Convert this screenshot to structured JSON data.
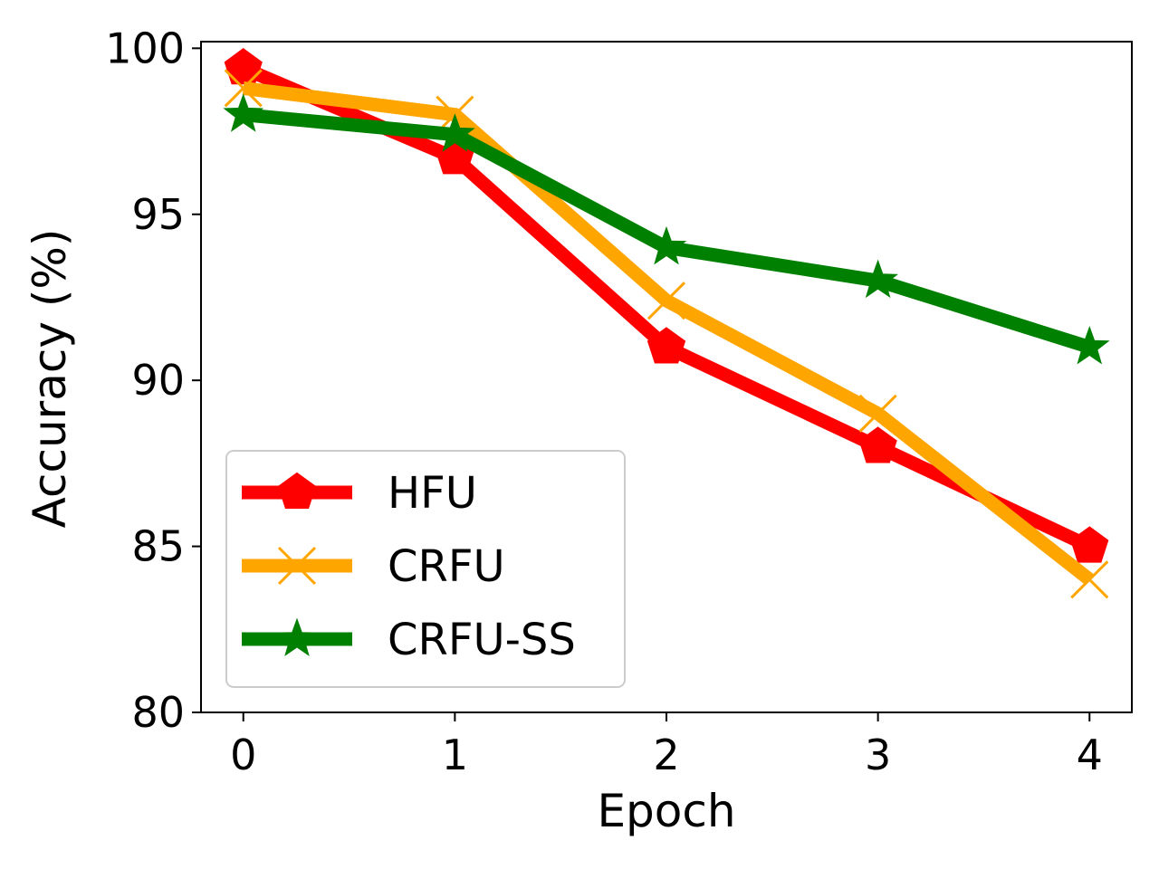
{
  "chart_data": {
    "type": "line",
    "title": "",
    "xlabel": "Epoch",
    "ylabel": "Accuracy (%)",
    "x": [
      0,
      1,
      2,
      3,
      4
    ],
    "xticks": [
      "0",
      "1",
      "2",
      "3",
      "4"
    ],
    "yticks": [
      "80",
      "85",
      "90",
      "95",
      "100"
    ],
    "xlim": [
      -0.2,
      4.2
    ],
    "ylim": [
      80,
      100.2
    ],
    "grid": false,
    "legend_position": "lower-left",
    "series": [
      {
        "name": "HFU",
        "values": [
          99.4,
          96.7,
          91.0,
          88.0,
          85.0
        ],
        "color": "#ff0000",
        "marker": "pentagon"
      },
      {
        "name": "CRFU",
        "values": [
          98.8,
          98.0,
          92.4,
          89.0,
          84.0
        ],
        "color": "#ffa500",
        "marker": "x"
      },
      {
        "name": "CRFU-SS",
        "values": [
          98.0,
          97.4,
          94.0,
          93.0,
          91.0
        ],
        "color": "#008000",
        "marker": "star"
      }
    ]
  }
}
